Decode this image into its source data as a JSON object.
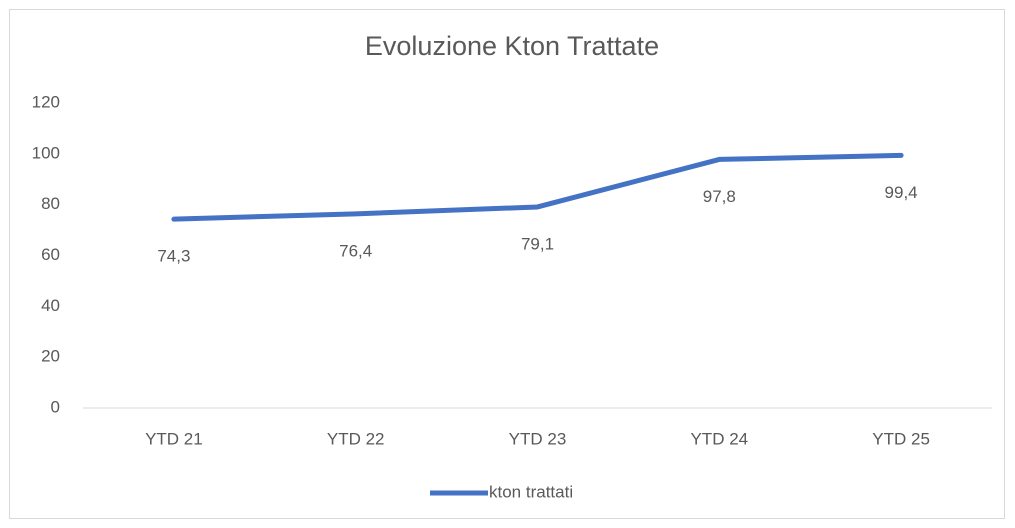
{
  "chart_data": {
    "type": "line",
    "title": "Evoluzione Kton Trattate",
    "categories": [
      "YTD 21",
      "YTD 22",
      "YTD 23",
      "YTD 24",
      "YTD 25"
    ],
    "series": [
      {
        "name": "kton trattati",
        "color": "#4472c4",
        "values": [
          74.3,
          76.4,
          79.1,
          97.8,
          99.4
        ],
        "value_labels": [
          "74,3",
          "76,4",
          "79,1",
          "97,8",
          "99,4"
        ]
      }
    ],
    "ylim": [
      0,
      120
    ],
    "yticks": [
      0,
      20,
      40,
      60,
      80,
      100,
      120
    ],
    "grid": false,
    "legend": "bottom"
  }
}
